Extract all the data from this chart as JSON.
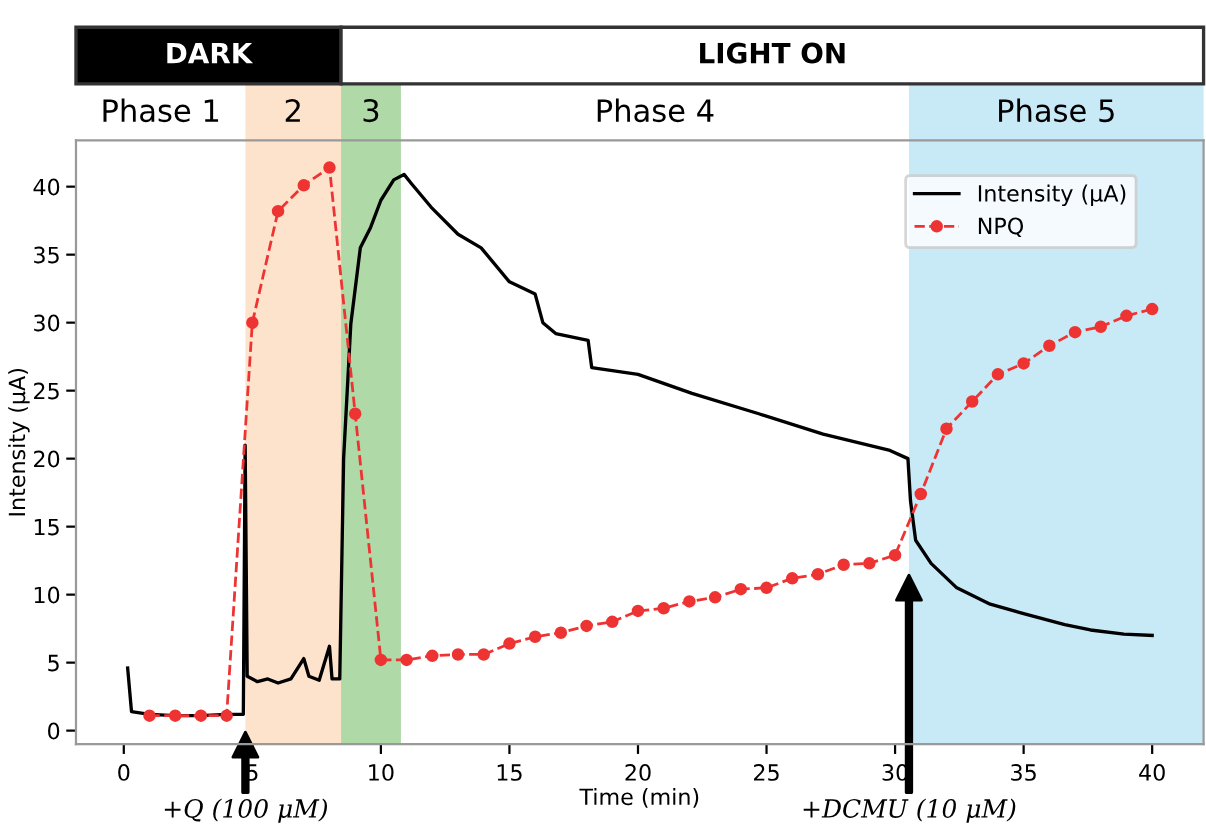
{
  "chart_data": {
    "type": "line",
    "xlabel": "Time (min)",
    "ylabel": "Intensity (μA)",
    "xlim": [
      -1.86,
      42
    ],
    "ylim": [
      -1,
      43.4
    ],
    "xticks": [
      0,
      5,
      10,
      15,
      20,
      25,
      30,
      35,
      40
    ],
    "yticks": [
      0,
      5,
      10,
      15,
      20,
      25,
      30,
      35,
      40
    ],
    "grid": false,
    "legend": "top right",
    "series": [
      {
        "name": "Intensity (μA)",
        "color": "#000000",
        "marker": "none",
        "line_style": "solid",
        "x": [
          0.15,
          0.3,
          1,
          2,
          3,
          4,
          4.65,
          4.72,
          4.8,
          5.2,
          5.6,
          6,
          6.5,
          7.0,
          7.2,
          7.6,
          8.0,
          8.1,
          8.4,
          8.55,
          8.83,
          9.2,
          9.6,
          10,
          10.5,
          10.9,
          11.2,
          11.95,
          13,
          13.9,
          15,
          16.0,
          16.3,
          16.8,
          18.06,
          18.2,
          20,
          22.1,
          24.7,
          27.2,
          29.8,
          30.5,
          30.6,
          30.8,
          31.4,
          32.4,
          33.7,
          35.0,
          36.6,
          37.6,
          38.9,
          40
        ],
        "values": [
          4.6,
          1.4,
          1.2,
          1.1,
          1.1,
          1.2,
          1.2,
          21,
          4.0,
          3.6,
          3.8,
          3.5,
          3.8,
          5.3,
          4.0,
          3.7,
          6.2,
          3.8,
          3.8,
          20,
          29.9,
          35.5,
          37,
          39,
          40.5,
          40.9,
          40.2,
          38.5,
          36.5,
          35.5,
          33,
          32.1,
          30,
          29.2,
          28.7,
          26.7,
          26.2,
          24.8,
          23.3,
          21.8,
          20.6,
          20.0,
          16.9,
          14.0,
          12.3,
          10.5,
          9.3,
          8.6,
          7.8,
          7.4,
          7.1,
          7.0
        ]
      },
      {
        "name": "NPQ",
        "color": "#ee3333",
        "marker": "circle",
        "line_style": "dashed",
        "x": [
          1,
          2,
          3,
          4,
          5,
          6,
          7,
          8,
          9,
          10,
          11,
          12,
          13,
          14,
          15,
          16,
          17,
          18,
          19,
          20,
          21,
          22,
          23,
          24,
          25,
          26,
          27,
          28,
          29,
          30,
          31,
          32,
          33,
          34,
          35,
          36,
          37,
          38,
          39,
          40
        ],
        "values": [
          1.1,
          1.1,
          1.1,
          1.1,
          30.0,
          38.2,
          40.1,
          41.4,
          23.3,
          5.2,
          5.2,
          5.5,
          5.6,
          5.6,
          6.4,
          6.9,
          7.2,
          7.7,
          8.0,
          8.8,
          9.0,
          9.5,
          9.8,
          10.4,
          10.5,
          11.2,
          11.5,
          12.2,
          12.3,
          12.9,
          17.4,
          22.2,
          24.2,
          26.2,
          27.0,
          28.3,
          29.3,
          29.7,
          30.5,
          31.0
        ]
      }
    ],
    "bands": [
      {
        "axis": "x",
        "from": 4.73,
        "to": 8.45,
        "label": "2",
        "color": "#fde3cc"
      },
      {
        "axis": "x",
        "from": 8.45,
        "to": 10.78,
        "label": "3",
        "color": "#b0d9a8"
      },
      {
        "axis": "x",
        "from": 30.54,
        "to": 42,
        "label": "Phase 5",
        "color": "#c8e9f6"
      }
    ],
    "annotations": [
      "DARK",
      "LIGHT ON",
      "Phase 1",
      "Phase 4",
      "+Q (100 μM)",
      "+DCMU (10 μM)"
    ]
  }
}
